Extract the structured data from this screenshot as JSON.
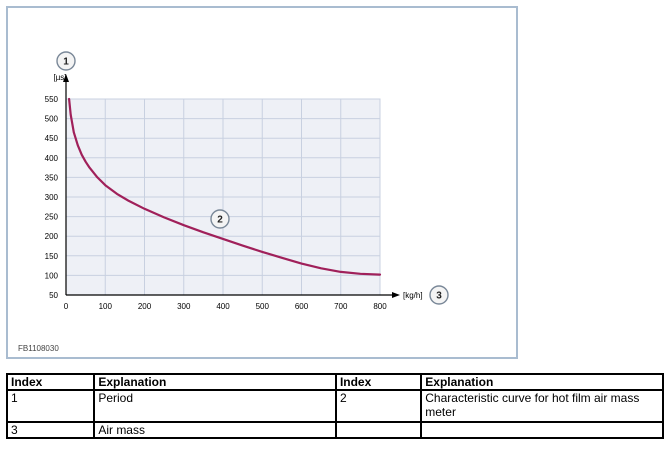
{
  "figure_id": "FB1108030",
  "chart_data": {
    "type": "line",
    "ylabel": "[µs]",
    "xlabel": "[kg/h]",
    "xlim": [
      0,
      800
    ],
    "ylim": [
      50,
      550
    ],
    "xticks": [
      0,
      100,
      200,
      300,
      400,
      500,
      600,
      700,
      800
    ],
    "yticks": [
      50,
      100,
      150,
      200,
      250,
      300,
      350,
      400,
      450,
      500,
      550
    ],
    "grid": true,
    "plot_background": "#eef0f6",
    "grid_color": "#c8d0e0",
    "line_color": "#a0205a",
    "callouts": {
      "y_axis": "1",
      "curve": "2",
      "x_axis": "3"
    },
    "series": [
      {
        "x": [
          8,
          12,
          20,
          30,
          40,
          50,
          60,
          80,
          100,
          130,
          160,
          200,
          250,
          300,
          350,
          400,
          450,
          500,
          550,
          600,
          650,
          700,
          750,
          800
        ],
        "values": [
          550,
          510,
          465,
          432,
          408,
          390,
          375,
          350,
          330,
          308,
          290,
          270,
          248,
          228,
          210,
          193,
          176,
          160,
          145,
          130,
          118,
          109,
          104,
          102
        ]
      }
    ]
  },
  "table": {
    "headers": [
      "Index",
      "Explanation",
      "Index",
      "Explanation"
    ],
    "rows": [
      [
        "1",
        "Period",
        "2",
        "Characteristic curve for hot film air mass meter"
      ],
      [
        "3",
        "Air mass",
        "",
        ""
      ]
    ]
  }
}
